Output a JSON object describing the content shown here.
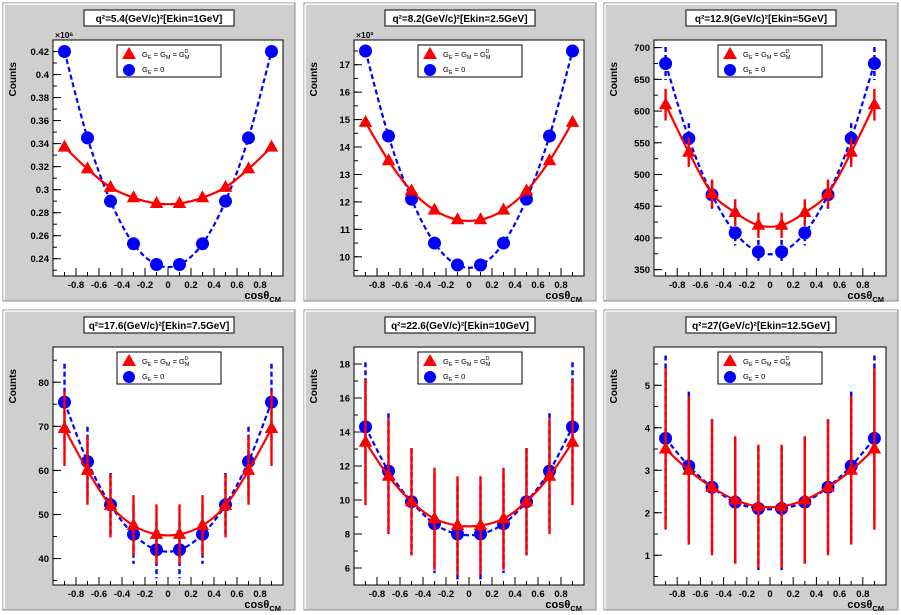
{
  "common": {
    "xlabel": "cosθ",
    "xlabel_sub": "CM",
    "ylabel": "Counts",
    "x": [
      -0.9,
      -0.7,
      -0.5,
      -0.3,
      -0.1,
      0.1,
      0.3,
      0.5,
      0.7,
      0.9
    ],
    "xlim": [
      -1,
      1
    ],
    "xticks": [
      -0.8,
      -0.6,
      -0.4,
      -0.2,
      0,
      0.2,
      0.4,
      0.6,
      0.8
    ],
    "xtick_labels": [
      "-0.8",
      "-0.6",
      "-0.4",
      "-0.2",
      "0",
      "0.2",
      "0.4",
      "0.6",
      "0.8"
    ],
    "legend": [
      {
        "name": "G_E = G_M = G_M^D",
        "label_main": "G",
        "label_sub": "E",
        "label_rest": " = G",
        "label_sub2": "M",
        "label_rest2": " = G",
        "label_sub3": "M",
        "label_sup3": "D",
        "marker": "triangle",
        "color": "#ff0000"
      },
      {
        "name": "G_E = 0",
        "label_main": "G",
        "label_sub": "E",
        "label_rest": " = 0",
        "marker": "circle",
        "color": "#0000ff"
      }
    ],
    "colors": {
      "red": "#ff0000",
      "blue": "#0000ff",
      "frame": "#cfcfcf",
      "title_bg": "#ffffff"
    }
  },
  "chart_data": [
    {
      "type": "scatter",
      "title": "q²=5.4(GeV/c)²[Ekin=1GeV]",
      "ylim": [
        0.225,
        0.43
      ],
      "yticks": [
        0.24,
        0.26,
        0.28,
        0.3,
        0.32,
        0.34,
        0.36,
        0.38,
        0.4,
        0.42
      ],
      "ytick_labels": [
        "0.24",
        "0.26",
        "0.28",
        "0.3",
        "0.32",
        "0.34",
        "0.36",
        "0.38",
        "0.4",
        "0.42"
      ],
      "exponent": "×10⁶",
      "series": [
        {
          "values": [
            0.337,
            0.318,
            0.302,
            0.293,
            0.288,
            0.288,
            0.293,
            0.302,
            0.318,
            0.337
          ],
          "errors": [
            0,
            0,
            0,
            0,
            0,
            0,
            0,
            0,
            0,
            0
          ]
        },
        {
          "values": [
            0.42,
            0.345,
            0.29,
            0.253,
            0.235,
            0.235,
            0.253,
            0.29,
            0.345,
            0.42
          ],
          "errors": [
            0,
            0,
            0,
            0,
            0,
            0,
            0,
            0,
            0,
            0
          ]
        }
      ]
    },
    {
      "type": "scatter",
      "title": "q²=8.2(GeV/c)²[Ekin=2.5GeV]",
      "ylim": [
        9.3,
        17.9
      ],
      "yticks": [
        10,
        11,
        12,
        13,
        14,
        15,
        16,
        17
      ],
      "ytick_labels": [
        "10",
        "11",
        "12",
        "13",
        "14",
        "15",
        "16",
        "17"
      ],
      "exponent": "×10³",
      "series": [
        {
          "values": [
            14.9,
            13.5,
            12.4,
            11.7,
            11.35,
            11.35,
            11.7,
            12.4,
            13.5,
            14.9
          ],
          "errors": [
            0,
            0,
            0,
            0,
            0,
            0,
            0,
            0,
            0,
            0
          ]
        },
        {
          "values": [
            17.5,
            14.4,
            12.1,
            10.5,
            9.7,
            9.7,
            10.5,
            12.1,
            14.4,
            17.5
          ],
          "errors": [
            0,
            0,
            0,
            0,
            0,
            0,
            0,
            0,
            0,
            0
          ]
        }
      ]
    },
    {
      "type": "scatter",
      "title": "q²=12.9(GeV/c)²[Ekin=5GeV]",
      "ylim": [
        340,
        712
      ],
      "yticks": [
        350,
        400,
        450,
        500,
        550,
        600,
        650,
        700
      ],
      "ytick_labels": [
        "350",
        "400",
        "450",
        "500",
        "550",
        "600",
        "650",
        "700"
      ],
      "exponent": "",
      "series": [
        {
          "values": [
            610,
            535,
            470,
            440,
            420,
            420,
            440,
            470,
            535,
            610
          ],
          "errors": [
            25,
            23,
            22,
            21,
            20,
            20,
            21,
            22,
            23,
            25
          ]
        },
        {
          "values": [
            675,
            557,
            468,
            408,
            378,
            378,
            408,
            468,
            557,
            675
          ],
          "errors": [
            26,
            24,
            22,
            20,
            19,
            19,
            20,
            22,
            24,
            26
          ]
        }
      ]
    },
    {
      "type": "scatter",
      "title": "q²=17.6(GeV/c)²[Ekin=7.5GeV]",
      "ylim": [
        34,
        88
      ],
      "yticks": [
        40,
        50,
        60,
        70,
        80
      ],
      "ytick_labels": [
        "40",
        "50",
        "60",
        "70",
        "80"
      ],
      "exponent": "",
      "series": [
        {
          "values": [
            69.5,
            60,
            52,
            47.5,
            45.5,
            45.5,
            47.5,
            52,
            60,
            69.5
          ],
          "errors": [
            8.5,
            7.8,
            7.2,
            6.9,
            6.8,
            6.8,
            6.9,
            7.2,
            7.8,
            8.5
          ]
        },
        {
          "values": [
            75.5,
            62,
            52.2,
            45.5,
            42,
            42,
            45.5,
            52.2,
            62,
            75.5
          ],
          "errors": [
            8.7,
            7.9,
            7.2,
            6.7,
            6.5,
            6.5,
            6.7,
            7.2,
            7.9,
            8.7
          ]
        }
      ]
    },
    {
      "type": "scatter",
      "title": "q²=22.6(GeV/c)²[Ekin=10GeV]",
      "ylim": [
        5,
        19
      ],
      "yticks": [
        6,
        8,
        10,
        12,
        14,
        16,
        18
      ],
      "ytick_labels": [
        "6",
        "8",
        "10",
        "12",
        "14",
        "16",
        "18"
      ],
      "exponent": "",
      "series": [
        {
          "values": [
            13.4,
            11.4,
            9.9,
            8.9,
            8.5,
            8.5,
            8.9,
            9.9,
            11.4,
            13.4
          ],
          "errors": [
            3.7,
            3.4,
            3.15,
            3.0,
            2.9,
            2.9,
            3.0,
            3.15,
            3.4,
            3.7
          ]
        },
        {
          "values": [
            14.3,
            11.7,
            9.9,
            8.6,
            8.0,
            8.0,
            8.6,
            9.9,
            11.7,
            14.3
          ],
          "errors": [
            3.8,
            3.4,
            3.15,
            2.9,
            2.8,
            2.8,
            2.9,
            3.15,
            3.4,
            3.8
          ]
        }
      ]
    },
    {
      "type": "scatter",
      "title": "q²=27(GeV/c)²[Ekin=12.5GeV]",
      "ylim": [
        0.3,
        5.9
      ],
      "yticks": [
        1,
        2,
        3,
        4,
        5
      ],
      "ytick_labels": [
        "1",
        "2",
        "3",
        "4",
        "5"
      ],
      "exponent": "",
      "series": [
        {
          "values": [
            3.5,
            3.0,
            2.6,
            2.3,
            2.15,
            2.15,
            2.3,
            2.6,
            3.0,
            3.5
          ],
          "errors": [
            1.9,
            1.75,
            1.6,
            1.5,
            1.45,
            1.45,
            1.5,
            1.6,
            1.75,
            1.9
          ]
        },
        {
          "values": [
            3.75,
            3.1,
            2.6,
            2.25,
            2.1,
            2.1,
            2.25,
            2.6,
            3.1,
            3.75
          ],
          "errors": [
            1.95,
            1.75,
            1.6,
            1.5,
            1.45,
            1.45,
            1.5,
            1.6,
            1.75,
            1.95
          ]
        }
      ]
    }
  ]
}
